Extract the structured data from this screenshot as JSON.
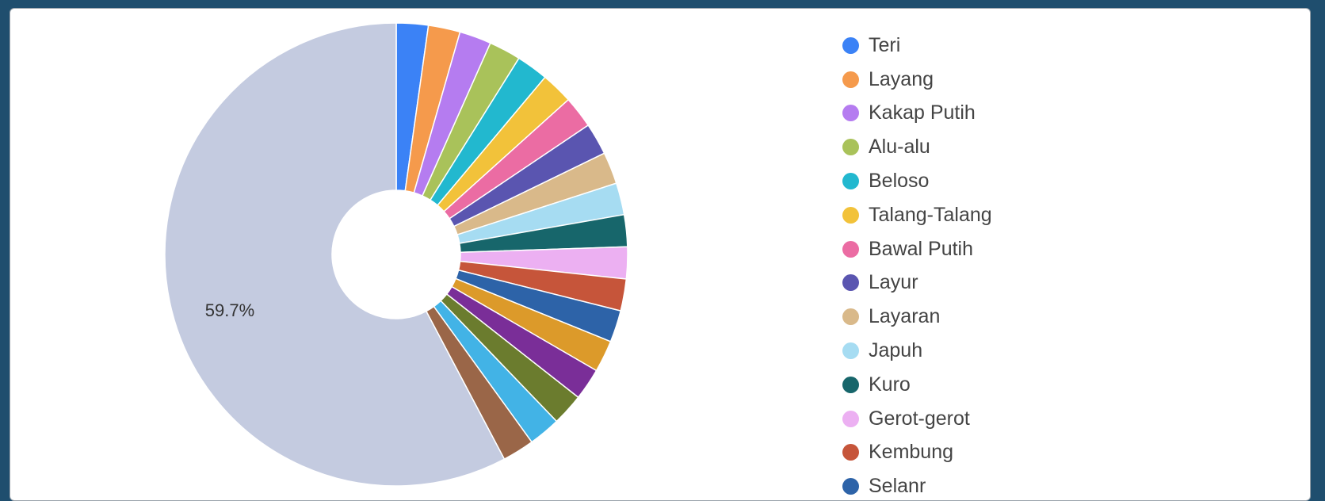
{
  "chart_data": {
    "type": "pie",
    "variant": "donut",
    "legend_position": "right",
    "visible_slice_label": "59.7%",
    "series": [
      {
        "name": "Teri",
        "value": 2.3,
        "color": "#3b82f6"
      },
      {
        "name": "Layang",
        "value": 2.3,
        "color": "#f59a4c"
      },
      {
        "name": "Kakap Putih",
        "value": 2.3,
        "color": "#b57cf0"
      },
      {
        "name": "Alu-alu",
        "value": 2.3,
        "color": "#a9c25a"
      },
      {
        "name": "Beloso",
        "value": 2.3,
        "color": "#22b8cf"
      },
      {
        "name": "Talang-Talang",
        "value": 2.3,
        "color": "#f2c23a"
      },
      {
        "name": "Bawal Putih",
        "value": 2.3,
        "color": "#eb6ca3"
      },
      {
        "name": "Layur",
        "value": 2.3,
        "color": "#5a55b0"
      },
      {
        "name": "Layaran",
        "value": 2.3,
        "color": "#d9b98a"
      },
      {
        "name": "Japuh",
        "value": 2.3,
        "color": "#a6dcf2"
      },
      {
        "name": "Kuro",
        "value": 2.3,
        "color": "#17666b"
      },
      {
        "name": "Gerot-gerot",
        "value": 2.3,
        "color": "#ecb0f2"
      },
      {
        "name": "Kembung",
        "value": 2.3,
        "color": "#c6553a"
      },
      {
        "name": "Selanr",
        "value": 2.3,
        "color": "#2d63a8"
      },
      {
        "name": "",
        "value": 2.3,
        "color": "#dc9a2a"
      },
      {
        "name": "",
        "value": 2.3,
        "color": "#7a2e98"
      },
      {
        "name": "",
        "value": 2.3,
        "color": "#6b7c2e"
      },
      {
        "name": "",
        "value": 2.3,
        "color": "#42b3e6"
      },
      {
        "name": "",
        "value": 2.3,
        "color": "#9a6648"
      },
      {
        "name": "",
        "value": 59.7,
        "color": "#c4cbe0"
      }
    ]
  }
}
